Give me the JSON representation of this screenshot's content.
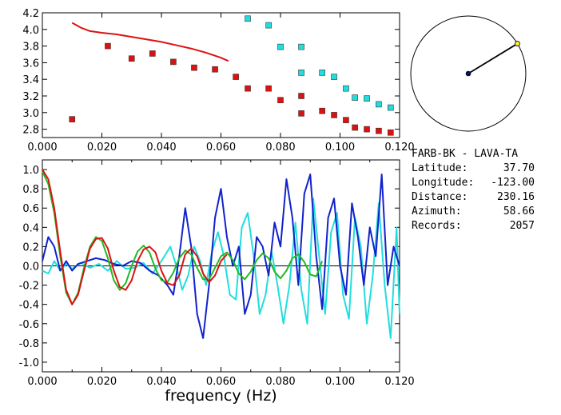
{
  "colors": {
    "red": "#dd1111",
    "blue": "#1122cc",
    "cyan": "#22dddd",
    "green": "#22bb22",
    "axis": "#000000",
    "marker_yellow": "#ffee33",
    "marker_navy": "#001166"
  },
  "info": {
    "station_pair": "FARB-BK - LAVA-TA",
    "rows": [
      {
        "label": "Latitude:",
        "value": "37.70"
      },
      {
        "label": "Longitude:",
        "value": "-123.00"
      },
      {
        "label": "Distance:",
        "value": "230.16"
      },
      {
        "label": "Azimuth:",
        "value": "58.66"
      },
      {
        "label": "Records:",
        "value": "2057"
      }
    ]
  },
  "azimuth_deg": 58.66,
  "chart_data": [
    {
      "type": "scatter",
      "xlim": [
        0.0,
        0.12
      ],
      "ylim": [
        2.7,
        4.2
      ],
      "x_ticks": [
        "0.000",
        "0.020",
        "0.040",
        "0.060",
        "0.080",
        "0.100",
        "0.120"
      ],
      "y_ticks": [
        "2.8",
        "3.0",
        "3.2",
        "3.4",
        "3.6",
        "3.8",
        "4.0",
        "4.2"
      ],
      "series": [
        {
          "kind": "line",
          "color": "red",
          "x": [
            0.01,
            0.013,
            0.016,
            0.02,
            0.025,
            0.03,
            0.035,
            0.04,
            0.045,
            0.05,
            0.055,
            0.06,
            0.0625
          ],
          "y": [
            4.08,
            4.02,
            3.98,
            3.96,
            3.94,
            3.91,
            3.88,
            3.85,
            3.81,
            3.77,
            3.72,
            3.66,
            3.62
          ]
        },
        {
          "kind": "markers",
          "color": "red",
          "x": [
            0.01,
            0.022,
            0.03,
            0.037,
            0.044,
            0.051,
            0.058,
            0.065,
            0.069,
            0.076,
            0.08,
            0.087,
            0.087,
            0.094,
            0.098,
            0.102,
            0.105,
            0.109,
            0.113,
            0.117
          ],
          "y": [
            2.92,
            3.8,
            3.65,
            3.71,
            3.61,
            3.54,
            3.52,
            3.43,
            3.29,
            3.29,
            3.15,
            3.2,
            2.99,
            3.02,
            2.97,
            2.91,
            2.82,
            2.8,
            2.78,
            2.76
          ]
        },
        {
          "kind": "markers",
          "color": "cyan",
          "x": [
            0.069,
            0.076,
            0.08,
            0.087,
            0.087,
            0.094,
            0.098,
            0.102,
            0.105,
            0.109,
            0.113,
            0.117
          ],
          "y": [
            4.13,
            4.05,
            3.79,
            3.79,
            3.48,
            3.48,
            3.43,
            3.29,
            3.18,
            3.17,
            3.1,
            3.06
          ]
        }
      ]
    },
    {
      "type": "line",
      "xlim": [
        0.0,
        0.12
      ],
      "ylim": [
        -1.1,
        1.1
      ],
      "xlabel": "frequency (Hz)",
      "x_ticks": [
        "0.000",
        "0.020",
        "0.040",
        "0.060",
        "0.080",
        "0.100",
        "0.120"
      ],
      "y_ticks": [
        "1.0",
        "0.8",
        "0.6",
        "0.4",
        "0.2",
        "0.0",
        "-0.2",
        "-0.4",
        "-0.6",
        "-0.8",
        "-1.0"
      ],
      "series": [
        {
          "color": "red",
          "x": [
            0.0,
            0.002,
            0.004,
            0.006,
            0.008,
            0.01,
            0.012,
            0.014,
            0.016,
            0.018,
            0.02,
            0.022,
            0.024,
            0.026,
            0.028,
            0.03,
            0.032,
            0.034,
            0.036,
            0.038,
            0.04,
            0.042,
            0.044,
            0.046,
            0.048,
            0.05,
            0.052,
            0.054,
            0.056,
            0.058,
            0.06,
            0.062
          ],
          "y": [
            1.0,
            0.9,
            0.6,
            0.15,
            -0.25,
            -0.4,
            -0.3,
            -0.05,
            0.18,
            0.28,
            0.29,
            0.18,
            -0.05,
            -0.22,
            -0.25,
            -0.15,
            0.05,
            0.17,
            0.2,
            0.14,
            -0.05,
            -0.18,
            -0.2,
            -0.1,
            0.12,
            0.18,
            0.1,
            -0.08,
            -0.17,
            -0.1,
            0.05,
            0.12
          ]
        },
        {
          "color": "green",
          "x": [
            0.0,
            0.002,
            0.004,
            0.006,
            0.008,
            0.01,
            0.012,
            0.014,
            0.016,
            0.018,
            0.02,
            0.022,
            0.024,
            0.026,
            0.028,
            0.03,
            0.032,
            0.034,
            0.036,
            0.038,
            0.04,
            0.042,
            0.044,
            0.046,
            0.048,
            0.05,
            0.052,
            0.054,
            0.056,
            0.058,
            0.06,
            0.062,
            0.064,
            0.066,
            0.068,
            0.07,
            0.072,
            0.074,
            0.076,
            0.078,
            0.08,
            0.082,
            0.084,
            0.086,
            0.088,
            0.09,
            0.092,
            0.094
          ],
          "y": [
            0.98,
            0.85,
            0.55,
            0.1,
            -0.28,
            -0.4,
            -0.28,
            -0.02,
            0.2,
            0.3,
            0.26,
            0.08,
            -0.15,
            -0.25,
            -0.18,
            0.0,
            0.15,
            0.21,
            0.14,
            -0.03,
            -0.15,
            -0.17,
            -0.07,
            0.08,
            0.16,
            0.12,
            -0.02,
            -0.14,
            -0.14,
            -0.02,
            0.1,
            0.14,
            0.06,
            -0.08,
            -0.14,
            -0.06,
            0.06,
            0.13,
            0.08,
            -0.06,
            -0.13,
            -0.05,
            0.08,
            0.12,
            0.04,
            -0.09,
            -0.11,
            0.05
          ]
        },
        {
          "color": "blue",
          "x": [
            0.0,
            0.002,
            0.004,
            0.006,
            0.008,
            0.01,
            0.012,
            0.015,
            0.018,
            0.021,
            0.024,
            0.027,
            0.03,
            0.033,
            0.036,
            0.039,
            0.042,
            0.044,
            0.046,
            0.048,
            0.05,
            0.052,
            0.054,
            0.056,
            0.058,
            0.06,
            0.062,
            0.064,
            0.066,
            0.068,
            0.07,
            0.072,
            0.074,
            0.076,
            0.078,
            0.08,
            0.082,
            0.084,
            0.086,
            0.088,
            0.09,
            0.092,
            0.094,
            0.096,
            0.098,
            0.1,
            0.102,
            0.104,
            0.106,
            0.108,
            0.11,
            0.112,
            0.114,
            0.116,
            0.118,
            0.12
          ],
          "y": [
            0.05,
            0.3,
            0.2,
            -0.05,
            0.05,
            -0.05,
            0.02,
            0.05,
            0.08,
            0.06,
            0.02,
            0.0,
            0.05,
            0.03,
            -0.05,
            -0.1,
            -0.2,
            -0.3,
            0.1,
            0.6,
            0.2,
            -0.5,
            -0.75,
            -0.2,
            0.5,
            0.8,
            0.3,
            0.0,
            0.2,
            -0.5,
            -0.3,
            0.3,
            0.2,
            -0.1,
            0.45,
            0.2,
            0.9,
            0.5,
            -0.2,
            0.75,
            0.95,
            0.1,
            -0.45,
            0.5,
            0.7,
            0.0,
            -0.3,
            0.65,
            0.3,
            -0.2,
            0.4,
            0.1,
            0.95,
            -0.2,
            0.2,
            0.0
          ]
        },
        {
          "color": "cyan",
          "x": [
            0.0,
            0.002,
            0.004,
            0.006,
            0.008,
            0.01,
            0.013,
            0.016,
            0.019,
            0.022,
            0.025,
            0.028,
            0.031,
            0.034,
            0.037,
            0.04,
            0.043,
            0.045,
            0.047,
            0.049,
            0.051,
            0.053,
            0.055,
            0.057,
            0.059,
            0.061,
            0.063,
            0.065,
            0.067,
            0.069,
            0.071,
            0.073,
            0.075,
            0.077,
            0.079,
            0.081,
            0.083,
            0.085,
            0.087,
            0.089,
            0.091,
            0.093,
            0.095,
            0.097,
            0.099,
            0.101,
            0.103,
            0.105,
            0.107,
            0.109,
            0.111,
            0.113,
            0.115,
            0.117,
            0.119,
            0.12
          ],
          "y": [
            -0.05,
            -0.08,
            0.05,
            -0.05,
            0.02,
            -0.03,
            0.03,
            -0.02,
            0.02,
            -0.05,
            0.05,
            -0.03,
            -0.02,
            0.03,
            -0.08,
            0.05,
            0.2,
            0.0,
            -0.25,
            -0.1,
            0.2,
            0.05,
            -0.2,
            0.15,
            0.35,
            0.1,
            -0.3,
            -0.35,
            0.4,
            0.55,
            0.1,
            -0.5,
            -0.3,
            0.15,
            -0.2,
            -0.6,
            -0.2,
            0.45,
            -0.25,
            -0.6,
            0.7,
            0.1,
            -0.5,
            0.35,
            0.55,
            -0.3,
            -0.55,
            0.5,
            0.2,
            -0.6,
            -0.1,
            0.65,
            -0.2,
            -0.75,
            0.4,
            -0.5
          ]
        }
      ]
    }
  ]
}
